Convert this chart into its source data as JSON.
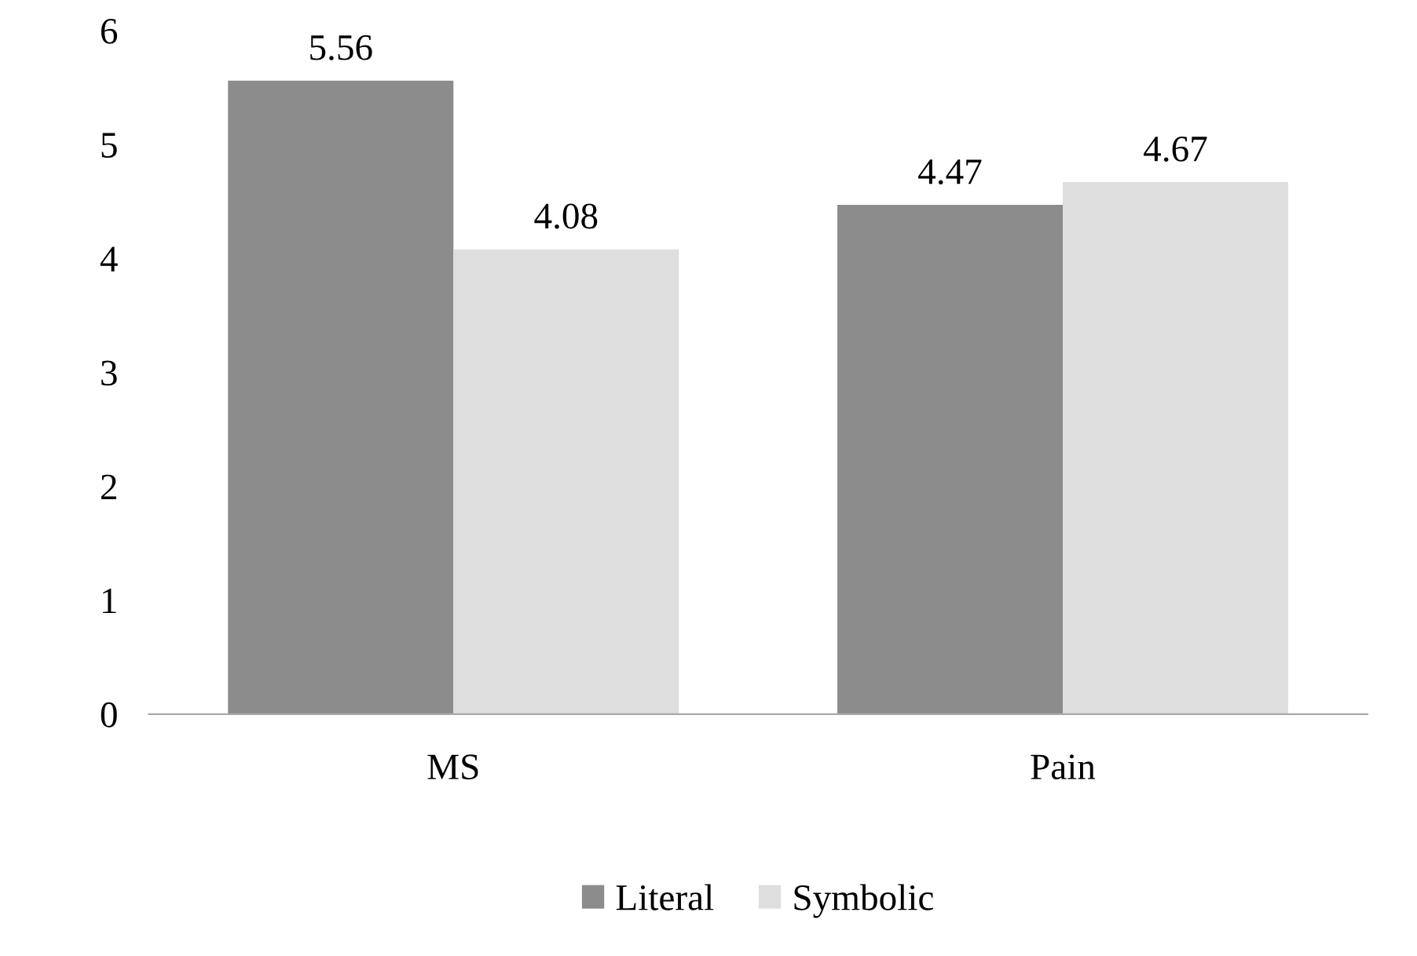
{
  "chart_data": {
    "type": "bar",
    "categories": [
      "MS",
      "Pain"
    ],
    "series": [
      {
        "name": "Literal",
        "color": "#8c8c8c",
        "values": [
          5.56,
          4.47
        ]
      },
      {
        "name": "Symbolic",
        "color": "#dedede",
        "values": [
          4.08,
          4.67
        ]
      }
    ],
    "ylim": [
      0,
      6
    ],
    "yticks": [
      0,
      1,
      2,
      3,
      4,
      5,
      6
    ],
    "data_labels": true,
    "grid": false,
    "legend": "bottom"
  }
}
